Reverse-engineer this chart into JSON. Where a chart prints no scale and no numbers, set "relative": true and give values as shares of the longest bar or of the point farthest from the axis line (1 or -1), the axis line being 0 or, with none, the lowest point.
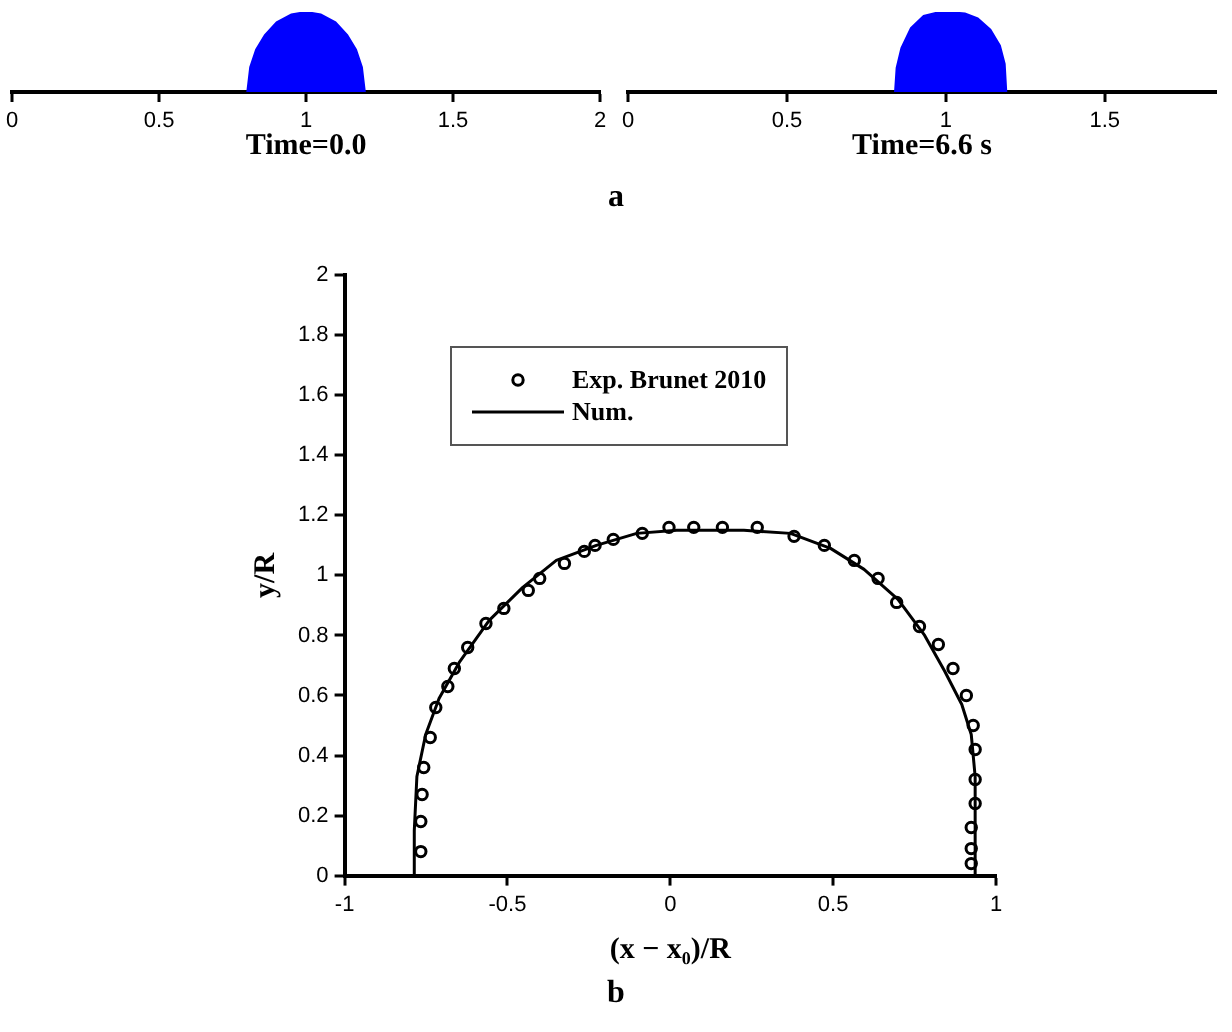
{
  "chart_data": [
    {
      "type": "area",
      "relative": true,
      "xlabel": "Time=0.0",
      "xlim": [
        0,
        2
      ],
      "xticks": [
        0,
        0.5,
        1,
        1.5,
        2
      ],
      "grid": false,
      "legend": false,
      "tick_labels": "x",
      "annotations": [
        "a"
      ],
      "series": [
        {
          "color": "#0000ff",
          "x": [
            0.8,
            0.81,
            0.83,
            0.86,
            0.9,
            0.95,
            1,
            1.05,
            1.1,
            1.14,
            1.17,
            1.19,
            1.2
          ],
          "values": [
            0,
            0.31,
            0.53,
            0.71,
            0.87,
            0.97,
            1,
            0.97,
            0.87,
            0.71,
            0.53,
            0.31,
            0
          ]
        }
      ]
    },
    {
      "type": "area",
      "relative": true,
      "xlabel": "Time=6.6 s",
      "xlim": [
        0,
        1.85
      ],
      "xticks": [
        0,
        0.5,
        1,
        1.5
      ],
      "grid": false,
      "legend": false,
      "tick_labels": "x",
      "series": [
        {
          "color": "#0000ff",
          "x": [
            0.84,
            0.845,
            0.86,
            0.89,
            0.93,
            0.97,
            1.015,
            1.06,
            1.1,
            1.14,
            1.17,
            1.185,
            1.19
          ],
          "values": [
            0,
            0.3,
            0.55,
            0.8,
            0.95,
            0.99,
            1,
            0.98,
            0.92,
            0.78,
            0.58,
            0.35,
            0
          ]
        }
      ]
    },
    {
      "type": "scatter",
      "xlabel": "(x − x₀)/R",
      "ylabel": "y/R",
      "xlim": [
        -1,
        1
      ],
      "xticks": [
        -1,
        -0.5,
        0,
        0.5,
        1
      ],
      "ylim": [
        0,
        2
      ],
      "yticks": [
        0,
        0.2,
        0.4,
        0.6,
        0.8,
        1,
        1.2,
        1.4,
        1.6,
        1.8,
        2
      ],
      "grid": false,
      "legend": "top",
      "annotations": [
        "b"
      ],
      "series": [
        {
          "name": "Exp. Brunet 2010",
          "type": "scatter",
          "marker": "circle",
          "color": "#000000",
          "x": [
            -0.766,
            -0.766,
            -0.762,
            -0.757,
            -0.737,
            -0.72,
            -0.683,
            -0.663,
            -0.622,
            -0.566,
            -0.511,
            -0.436,
            -0.401,
            -0.325,
            -0.264,
            -0.231,
            -0.175,
            -0.086,
            -0.004,
            0.072,
            0.16,
            0.267,
            0.38,
            0.473,
            0.565,
            0.638,
            0.695,
            0.765,
            0.823,
            0.868,
            0.909,
            0.93,
            0.936,
            0.936,
            0.936,
            0.924,
            0.924,
            0.924
          ],
          "values": [
            0.08,
            0.18,
            0.27,
            0.36,
            0.46,
            0.56,
            0.63,
            0.69,
            0.76,
            0.84,
            0.89,
            0.95,
            0.99,
            1.04,
            1.08,
            1.1,
            1.12,
            1.14,
            1.16,
            1.16,
            1.16,
            1.16,
            1.13,
            1.1,
            1.05,
            0.99,
            0.91,
            0.83,
            0.77,
            0.69,
            0.6,
            0.5,
            0.42,
            0.32,
            0.24,
            0.16,
            0.09,
            0.04
          ]
        },
        {
          "name": "Num.",
          "type": "line",
          "line_style": "solid",
          "color": "#000000",
          "x": [
            -0.786,
            -0.786,
            -0.778,
            -0.751,
            -0.71,
            -0.648,
            -0.556,
            -0.453,
            -0.35,
            -0.227,
            -0.103,
            0.02,
            0.226,
            0.369,
            0.492,
            0.595,
            0.699,
            0.781,
            0.843,
            0.895,
            0.924,
            0.936,
            0.936
          ],
          "values": [
            0,
            0.15,
            0.33,
            0.47,
            0.59,
            0.71,
            0.85,
            0.96,
            1.05,
            1.1,
            1.14,
            1.15,
            1.15,
            1.14,
            1.09,
            1.02,
            0.92,
            0.8,
            0.68,
            0.57,
            0.47,
            0.33,
            0
          ]
        }
      ]
    }
  ]
}
